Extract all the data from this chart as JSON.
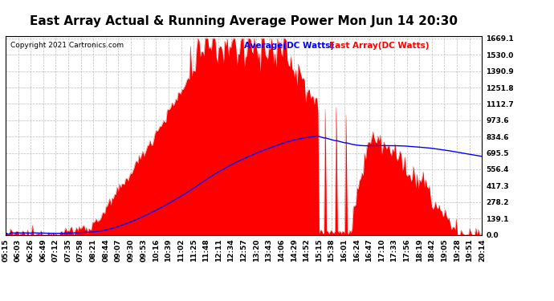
{
  "title": "East Array Actual & Running Average Power Mon Jun 14 20:30",
  "copyright": "Copyright 2021 Cartronics.com",
  "legend_avg": "Average(DC Watts)",
  "legend_east": "East Array(DC Watts)",
  "yticks": [
    0.0,
    139.1,
    278.2,
    417.3,
    556.4,
    695.5,
    834.6,
    973.6,
    1112.7,
    1251.8,
    1390.9,
    1530.0,
    1669.1
  ],
  "ymax": 1669.1,
  "ymin": 0.0,
  "fill_color": "#ff0000",
  "avg_color": "#0000ff",
  "east_color": "#ff0000",
  "bg_color": "#ffffff",
  "grid_color": "#bbbbbb",
  "title_color": "#000000",
  "xtick_labels": [
    "05:15",
    "06:03",
    "06:26",
    "06:49",
    "07:12",
    "07:35",
    "07:58",
    "08:21",
    "08:44",
    "09:07",
    "09:30",
    "09:53",
    "10:16",
    "10:39",
    "11:02",
    "11:25",
    "11:48",
    "12:11",
    "12:34",
    "12:57",
    "13:20",
    "13:43",
    "14:06",
    "14:29",
    "14:52",
    "15:15",
    "15:38",
    "16:01",
    "16:24",
    "16:47",
    "17:10",
    "17:33",
    "17:56",
    "18:19",
    "18:42",
    "19:05",
    "19:28",
    "19:51",
    "20:14"
  ],
  "title_fontsize": 11,
  "label_fontsize": 6.5,
  "copyright_fontsize": 6.5
}
